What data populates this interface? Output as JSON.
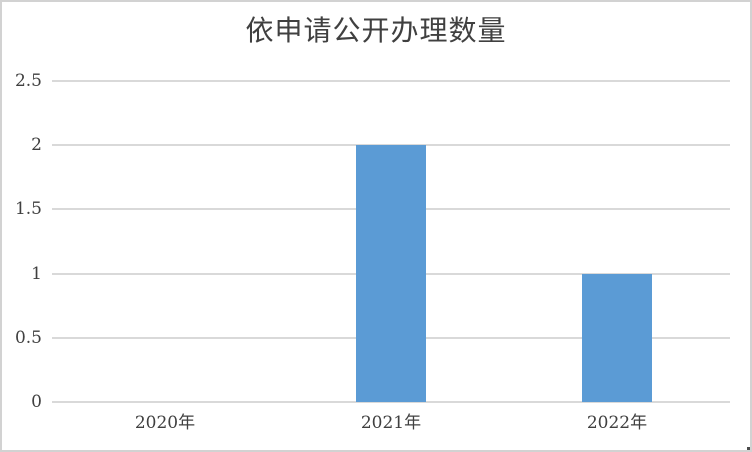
{
  "window": {
    "background": "#ffffff",
    "border_color": "#d2d2d2"
  },
  "chart_data": {
    "type": "bar",
    "title": "依申请公开办理数量",
    "categories": [
      "2020年",
      "2021年",
      "2022年"
    ],
    "values": [
      0,
      2,
      1
    ],
    "xlabel": "",
    "ylabel": "",
    "ylim": [
      0,
      2.5
    ],
    "ytick_interval": 0.5,
    "ytick_labels": [
      "0",
      "0.5",
      "1",
      "1.5",
      "2",
      "2.5"
    ],
    "grid": "horizontal-only",
    "legend": "none",
    "bar_color": "#5b9bd5",
    "gridline_color": "#d9d9d9",
    "axis_line_color": "#d9d9d9",
    "text_color": "#404040",
    "title_color": "#404040"
  }
}
